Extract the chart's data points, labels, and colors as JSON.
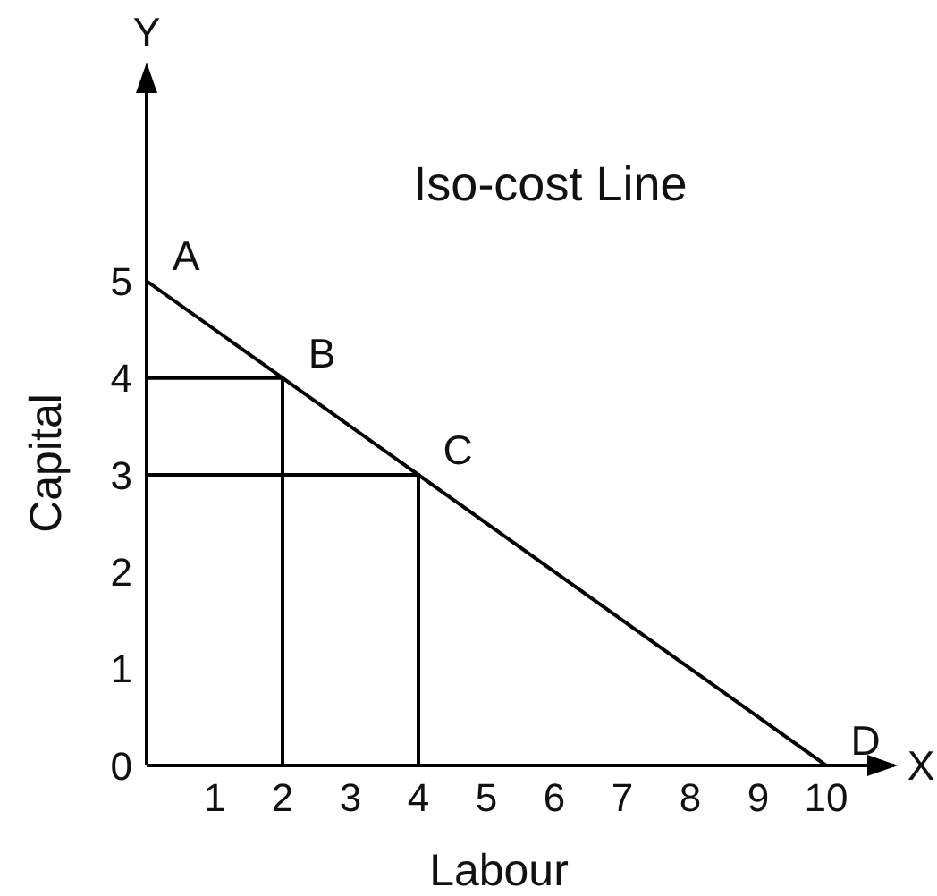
{
  "chart_data": {
    "type": "line",
    "title": "Iso-cost Line",
    "xlabel": "Labour",
    "ylabel": "Capital",
    "series": [
      {
        "color": "#000000",
        "x": [
          0,
          2,
          4,
          10
        ],
        "values": [
          5,
          4,
          3,
          0
        ]
      },
      {
        "color": "#000000",
        "x": [
          0,
          2,
          2
        ],
        "values": [
          4,
          4,
          0
        ]
      },
      {
        "color": "#000000",
        "x": [
          0,
          4,
          4
        ],
        "values": [
          3,
          3,
          0
        ]
      }
    ],
    "xlim": [
      0,
      11
    ],
    "ylim": [
      0,
      7.2
    ],
    "xticks": [
      1,
      2,
      3,
      4,
      5,
      6,
      7,
      8,
      9,
      10
    ],
    "yticks": [
      0,
      1,
      2,
      3,
      4,
      5
    ],
    "grid": false,
    "marker": "none",
    "line_style": "solid",
    "annotations": [
      {
        "text": "A",
        "x": 0,
        "y": 5
      },
      {
        "text": "B",
        "x": 2,
        "y": 4
      },
      {
        "text": "C",
        "x": 4,
        "y": 3
      },
      {
        "text": "D",
        "x": 10,
        "y": 0
      },
      "Y",
      "X"
    ]
  }
}
